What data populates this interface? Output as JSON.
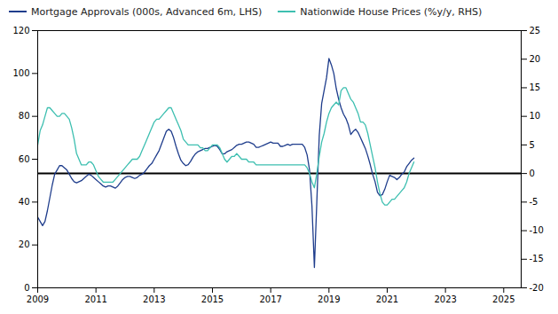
{
  "chart_data": {
    "type": "line",
    "x": [
      2009,
      2009.0833,
      2009.1667,
      2009.25,
      2009.3333,
      2009.4167,
      2009.5,
      2009.5833,
      2009.6667,
      2009.75,
      2009.8333,
      2009.9167,
      2010,
      2010.0833,
      2010.1667,
      2010.25,
      2010.3333,
      2010.4167,
      2010.5,
      2010.5833,
      2010.6667,
      2010.75,
      2010.8333,
      2010.9167,
      2011,
      2011.0833,
      2011.1667,
      2011.25,
      2011.3333,
      2011.4167,
      2011.5,
      2011.5833,
      2011.6667,
      2011.75,
      2011.8333,
      2011.9167,
      2012,
      2012.0833,
      2012.1667,
      2012.25,
      2012.3333,
      2012.4167,
      2012.5,
      2012.5833,
      2012.6667,
      2012.75,
      2012.8333,
      2012.9167,
      2013,
      2013.0833,
      2013.1667,
      2013.25,
      2013.3333,
      2013.4167,
      2013.5,
      2013.5833,
      2013.6667,
      2013.75,
      2013.8333,
      2013.9167,
      2014,
      2014.0833,
      2014.1667,
      2014.25,
      2014.3333,
      2014.4167,
      2014.5,
      2014.5833,
      2014.6667,
      2014.75,
      2014.8333,
      2014.9167,
      2015,
      2015.0833,
      2015.1667,
      2015.25,
      2015.3333,
      2015.4167,
      2015.5,
      2015.5833,
      2015.6667,
      2015.75,
      2015.8333,
      2015.9167,
      2016,
      2016.0833,
      2016.1667,
      2016.25,
      2016.3333,
      2016.4167,
      2016.5,
      2016.5833,
      2016.6667,
      2016.75,
      2016.8333,
      2016.9167,
      2017,
      2017.0833,
      2017.1667,
      2017.25,
      2017.3333,
      2017.4167,
      2017.5,
      2017.5833,
      2017.6667,
      2017.75,
      2017.8333,
      2017.9167,
      2018,
      2018.0833,
      2018.1667,
      2018.25,
      2018.3333,
      2018.4167,
      2018.5,
      2018.5833,
      2018.6667,
      2018.75,
      2018.8333,
      2018.9167,
      2019,
      2019.0833,
      2019.1667,
      2019.25,
      2019.3333,
      2019.4167,
      2019.5,
      2019.5833,
      2019.6667,
      2019.75,
      2019.8333,
      2019.9167,
      2020,
      2020.0833,
      2020.1667,
      2020.25,
      2020.3333,
      2020.4167,
      2020.5,
      2020.5833,
      2020.6667,
      2020.75,
      2020.8333,
      2020.9167,
      2021,
      2021.0833,
      2021.1667,
      2021.25,
      2021.3333,
      2021.4167,
      2021.5,
      2021.5833,
      2021.6667,
      2021.75,
      2021.8333,
      2021.9167
    ],
    "series": [
      {
        "name": "Mortgage Approvals (000s, Advanced 6m, LHS)",
        "color": "#1f3d8c",
        "axis": "y",
        "values": [
          33.0,
          31.0,
          29.0,
          31.0,
          36.0,
          42.0,
          48.0,
          53.0,
          55.0,
          57.0,
          57.0,
          56.0,
          55.0,
          53.0,
          51.0,
          49.5,
          49.0,
          49.5,
          50.0,
          51.0,
          52.0,
          53.0,
          52.5,
          51.5,
          50.5,
          49.5,
          48.5,
          47.5,
          47.0,
          47.5,
          47.5,
          47.0,
          46.5,
          47.5,
          49.0,
          50.5,
          51.5,
          52.0,
          52.0,
          51.5,
          51.0,
          51.5,
          52.5,
          53.0,
          54.0,
          55.5,
          57.0,
          58.0,
          60.0,
          62.0,
          64.0,
          67.0,
          70.0,
          73.0,
          74.0,
          73.0,
          70.0,
          66.0,
          62.5,
          59.5,
          58.0,
          57.0,
          57.5,
          59.0,
          61.0,
          62.5,
          63.5,
          64.0,
          64.5,
          65.0,
          65.0,
          65.5,
          66.0,
          66.5,
          66.0,
          64.5,
          62.5,
          62.5,
          63.5,
          64.0,
          64.5,
          65.5,
          66.5,
          67.0,
          67.0,
          67.5,
          68.0,
          68.0,
          67.5,
          67.0,
          65.5,
          65.5,
          66.0,
          66.5,
          67.0,
          67.5,
          68.0,
          67.5,
          67.5,
          67.5,
          66.0,
          66.0,
          66.5,
          67.0,
          66.5,
          67.0,
          67.0,
          67.0,
          67.0,
          67.0,
          65.5,
          62.0,
          55.0,
          38.0,
          9.5,
          40.0,
          71.0,
          86.0,
          92.0,
          98.0,
          107.0,
          104.0,
          100.0,
          93.0,
          88.0,
          84.0,
          81.0,
          79.0,
          76.0,
          71.5,
          73.0,
          74.0,
          72.5,
          70.0,
          67.5,
          65.0,
          61.5,
          57.5,
          53.0,
          49.5,
          44.5,
          43.0,
          43.5,
          46.0,
          49.5,
          52.5,
          52.0,
          51.5,
          50.5,
          51.5,
          53.0,
          54.0,
          56.5,
          58.0,
          59.5,
          60.5
        ]
      },
      {
        "name": "Nationwide House Prices (%y/y, RHS)",
        "color": "#3dbfb0",
        "axis": "y2",
        "values": [
          5.0,
          7.5,
          8.5,
          10.0,
          11.5,
          11.5,
          11.0,
          10.5,
          10.0,
          10.0,
          10.5,
          10.5,
          10.0,
          9.5,
          8.0,
          6.0,
          3.5,
          2.5,
          1.5,
          1.5,
          1.5,
          2.0,
          2.0,
          1.5,
          0.5,
          -0.5,
          -1.0,
          -1.5,
          -1.5,
          -1.5,
          -1.5,
          -1.5,
          -1.0,
          -0.5,
          0.0,
          0.5,
          1.0,
          1.5,
          2.0,
          2.5,
          2.5,
          2.5,
          3.0,
          4.0,
          5.0,
          6.0,
          7.0,
          8.0,
          9.0,
          9.5,
          9.5,
          10.0,
          10.5,
          11.0,
          11.5,
          11.5,
          10.5,
          9.5,
          8.5,
          7.5,
          6.0,
          5.5,
          5.0,
          5.0,
          5.0,
          5.0,
          5.0,
          4.5,
          4.5,
          4.0,
          4.0,
          4.5,
          5.0,
          5.0,
          5.0,
          4.5,
          3.5,
          2.5,
          2.0,
          2.5,
          3.0,
          3.0,
          3.5,
          3.0,
          2.5,
          2.5,
          2.5,
          2.0,
          2.0,
          2.0,
          1.5,
          1.5,
          1.5,
          1.5,
          1.5,
          1.5,
          1.5,
          1.5,
          1.5,
          1.5,
          1.5,
          1.5,
          1.5,
          1.5,
          1.5,
          1.5,
          1.5,
          1.5,
          1.5,
          1.5,
          1.5,
          1.0,
          0.0,
          -1.5,
          -2.5,
          0.0,
          3.0,
          5.5,
          7.0,
          9.0,
          10.5,
          11.5,
          12.0,
          12.5,
          12.0,
          14.5,
          15.0,
          15.0,
          14.0,
          13.0,
          12.5,
          11.5,
          10.5,
          9.0,
          9.0,
          8.5,
          7.0,
          5.0,
          3.0,
          1.0,
          -1.5,
          -3.5,
          -5.0,
          -5.5,
          -5.5,
          -5.0,
          -4.5,
          -4.5,
          -4.0,
          -3.5,
          -3.0,
          -2.5,
          -1.5,
          0.0,
          1.0,
          2.0
        ]
      }
    ],
    "zero_line": {
      "axis": "y2",
      "value": 0,
      "color": "#000000"
    },
    "xlim": [
      2009.0,
      2025.6
    ],
    "xticks": [
      2009,
      2011,
      2013,
      2015,
      2017,
      2019,
      2021,
      2023,
      2025
    ],
    "ylim": [
      0,
      120
    ],
    "yticks": [
      0,
      20,
      40,
      60,
      80,
      100,
      120
    ],
    "y2lim": [
      -20,
      25
    ],
    "y2ticks": [
      -20,
      -15,
      -10,
      -5,
      0,
      5,
      10,
      15,
      20,
      25
    ],
    "grid": false,
    "legend": "upper left"
  }
}
